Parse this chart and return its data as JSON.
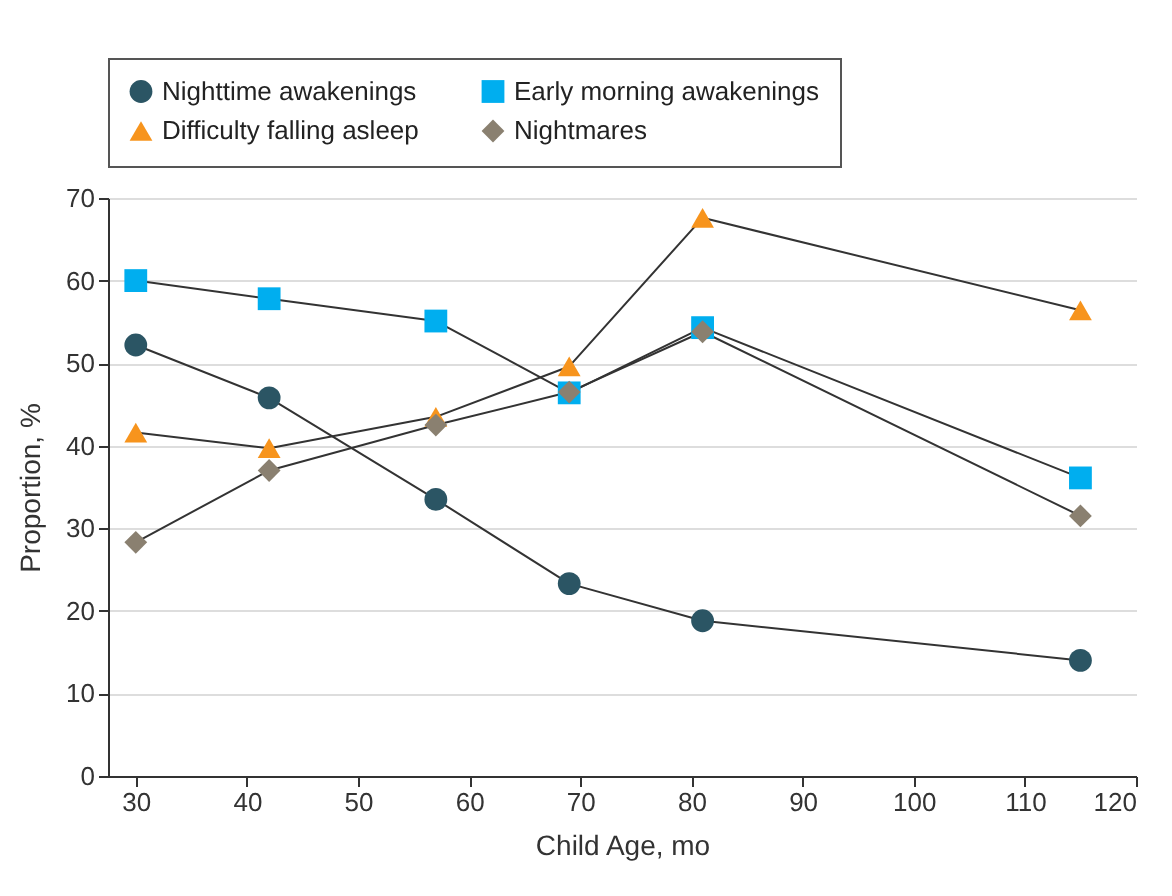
{
  "chart_data": {
    "type": "line",
    "xlabel": "Child Age, mo",
    "ylabel": "Proportion, %",
    "x": [
      30,
      42,
      57,
      69,
      81,
      115
    ],
    "series": [
      {
        "name": "Nighttime awakenings",
        "color": "#2b5564",
        "marker": "circle",
        "values": [
          52.2,
          45.8,
          33.5,
          23.3,
          18.8,
          14
        ]
      },
      {
        "name": "Early morning awakenings",
        "color": "#00aeef",
        "marker": "square",
        "values": [
          60,
          57.8,
          55.1,
          46.4,
          54.3,
          36.1
        ]
      },
      {
        "name": "Difficulty falling asleep",
        "color": "#f7941d",
        "marker": "triangle",
        "values": [
          41.6,
          39.7,
          43.5,
          49.6,
          67.6,
          56.4
        ]
      },
      {
        "name": "Nightmares",
        "color": "#8a8070",
        "marker": "diamond",
        "values": [
          28.3,
          37,
          42.5,
          46.5,
          53.8,
          31.5
        ]
      }
    ],
    "xlim": [
      27.5,
      120
    ],
    "xticks": [
      30,
      40,
      50,
      60,
      70,
      80,
      90,
      100,
      110,
      120
    ],
    "ylim": [
      0,
      70
    ],
    "yticks": [
      0,
      10,
      20,
      30,
      40,
      50,
      60,
      70
    ],
    "grid": "y",
    "legend": "top",
    "line_style": "solid"
  }
}
